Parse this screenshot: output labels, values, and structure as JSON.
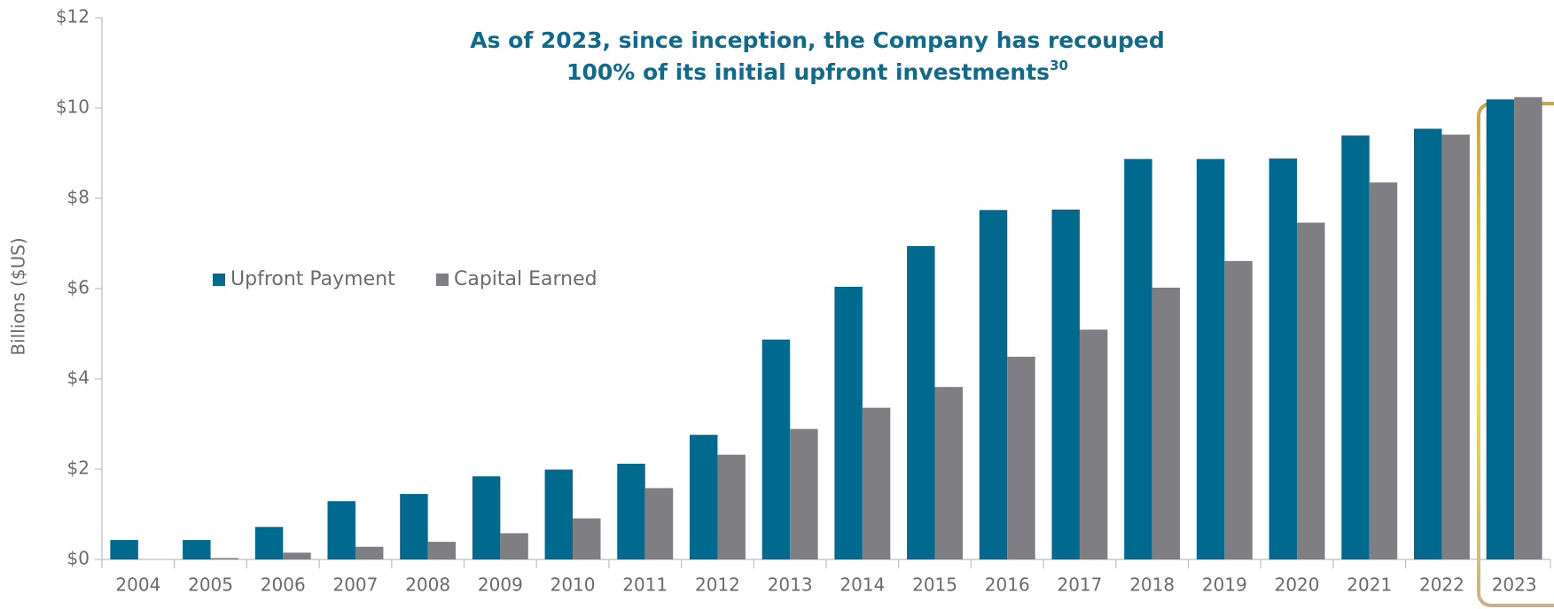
{
  "chart_data": {
    "type": "bar",
    "title": [
      "As of 2023, since inception, the Company has recouped",
      "100% of its initial upfront investments"
    ],
    "title_footnote": "30",
    "ylabel": "Billions ($US)",
    "categories": [
      "2004",
      "2005",
      "2006",
      "2007",
      "2008",
      "2009",
      "2010",
      "2011",
      "2012",
      "2013",
      "2014",
      "2015",
      "2016",
      "2017",
      "2018",
      "2019",
      "2020",
      "2021",
      "2022",
      "2023"
    ],
    "series": [
      {
        "name": "Upfront Payment",
        "color": "#006a8e",
        "values": [
          0.43,
          0.43,
          0.72,
          1.29,
          1.45,
          1.84,
          1.99,
          2.12,
          2.76,
          4.87,
          6.04,
          6.94,
          7.74,
          7.75,
          8.87,
          8.87,
          8.88,
          9.39,
          9.54,
          10.19
        ]
      },
      {
        "name": "Capital Earned",
        "color": "#7f7f83",
        "values": [
          0,
          0.03,
          0.15,
          0.28,
          0.39,
          0.58,
          0.91,
          1.58,
          2.32,
          2.89,
          3.36,
          3.82,
          4.49,
          5.09,
          6.02,
          6.61,
          7.46,
          8.35,
          9.41,
          10.24
        ]
      }
    ],
    "ylim": [
      0,
      12
    ],
    "yticks": [
      {
        "value": 0,
        "label": "$0"
      },
      {
        "value": 2,
        "label": "$2"
      },
      {
        "value": 4,
        "label": "$4"
      },
      {
        "value": 6,
        "label": "$6"
      },
      {
        "value": 8,
        "label": "$8"
      },
      {
        "value": 10,
        "label": "$10"
      },
      {
        "value": 12,
        "label": "$12"
      }
    ],
    "grid": false,
    "legend": "middle-left"
  }
}
